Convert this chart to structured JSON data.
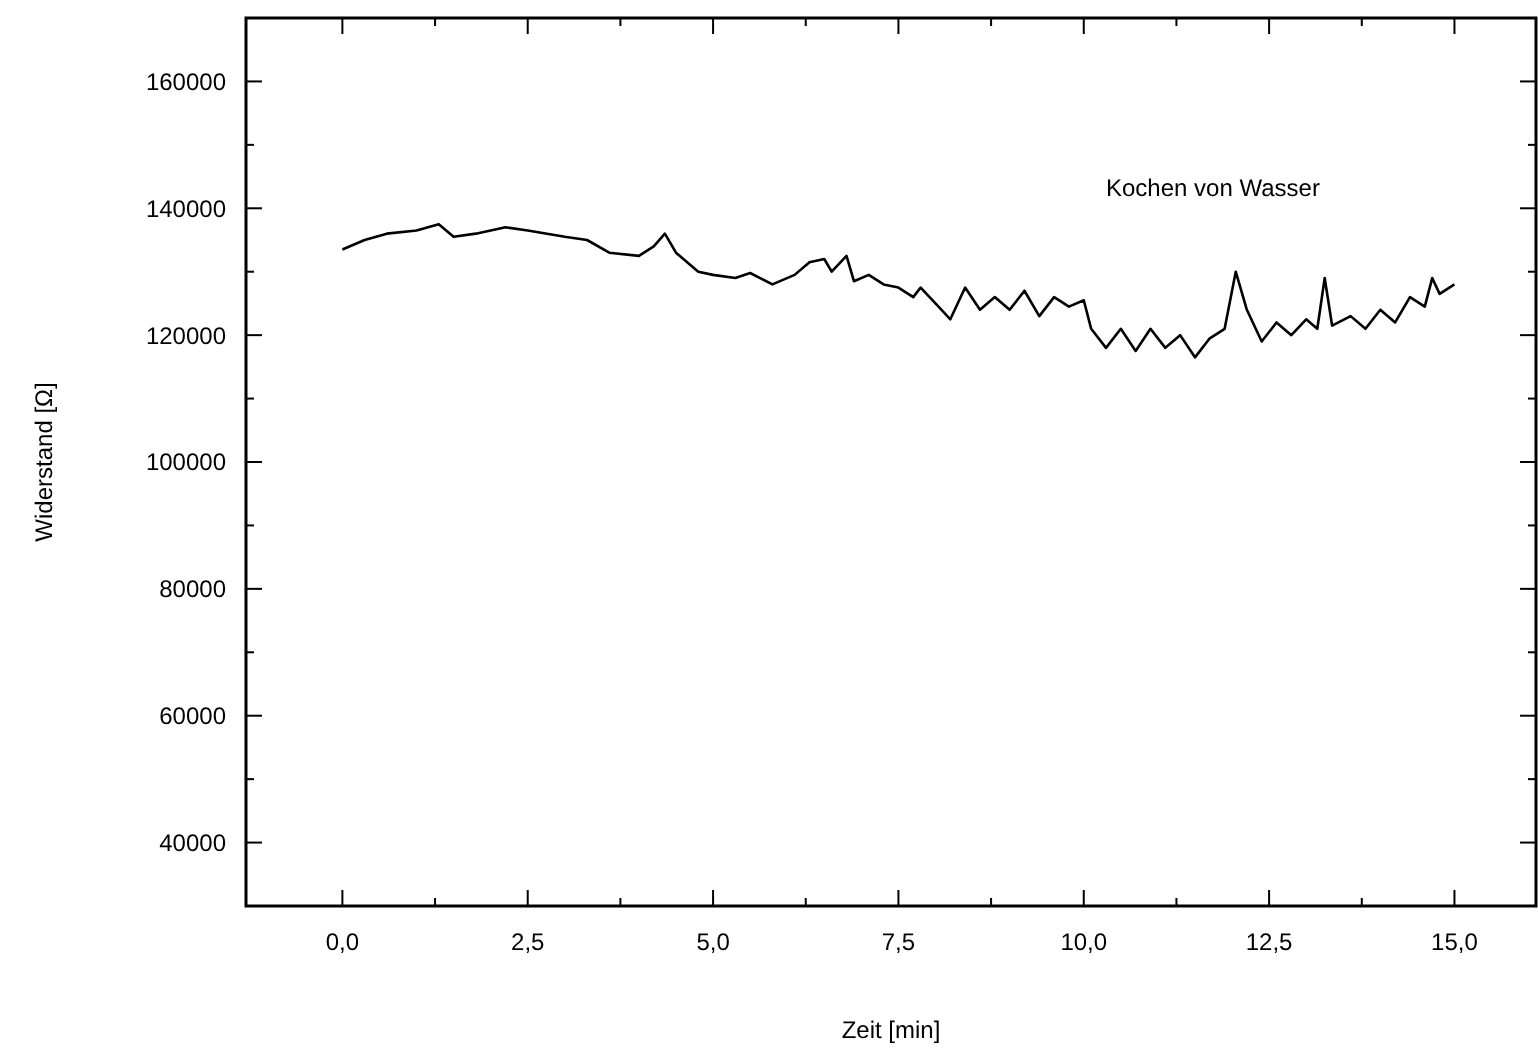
{
  "chart_data": {
    "type": "line",
    "xlabel": "Zeit [min]",
    "ylabel": "Widerstand [Ω]",
    "annotations": [
      "Kochen von Wasser"
    ],
    "xlim": [
      -1.3,
      16.1
    ],
    "ylim": [
      30000,
      170000
    ],
    "xticks": [
      {
        "value": 0,
        "label": "0,0"
      },
      {
        "value": 1.25,
        "label": null
      },
      {
        "value": 2.5,
        "label": "2,5"
      },
      {
        "value": 3.75,
        "label": null
      },
      {
        "value": 5,
        "label": "5,0"
      },
      {
        "value": 6.25,
        "label": null
      },
      {
        "value": 7.5,
        "label": "7,5"
      },
      {
        "value": 8.75,
        "label": null
      },
      {
        "value": 10,
        "label": "10,0"
      },
      {
        "value": 11.25,
        "label": null
      },
      {
        "value": 12.5,
        "label": "12,5"
      },
      {
        "value": 13.75,
        "label": null
      },
      {
        "value": 15,
        "label": "15,0"
      }
    ],
    "yticks": [
      40000,
      {
        "value": 50000,
        "label": null
      },
      60000,
      {
        "value": 70000,
        "label": null
      },
      80000,
      {
        "value": 90000,
        "label": null
      },
      100000,
      {
        "value": 110000,
        "label": null
      },
      120000,
      {
        "value": 130000,
        "label": null
      },
      140000,
      {
        "value": 150000,
        "label": null
      },
      160000
    ],
    "grid": false,
    "line_style": "solid",
    "marker": "none",
    "series": [
      {
        "color": "#000000",
        "x": [
          0,
          0.3,
          0.6,
          1.0,
          1.3,
          1.5,
          1.8,
          2.2,
          2.5,
          3.0,
          3.3,
          3.6,
          4.0,
          4.2,
          4.35,
          4.5,
          4.8,
          5.0,
          5.3,
          5.5,
          5.8,
          6.1,
          6.3,
          6.5,
          6.6,
          6.8,
          6.9,
          7.1,
          7.3,
          7.5,
          7.7,
          7.8,
          8.0,
          8.2,
          8.4,
          8.6,
          8.8,
          9.0,
          9.2,
          9.4,
          9.6,
          9.8,
          10.0,
          10.1,
          10.3,
          10.5,
          10.7,
          10.9,
          11.1,
          11.3,
          11.5,
          11.7,
          11.9,
          12.05,
          12.2,
          12.4,
          12.6,
          12.8,
          13.0,
          13.15,
          13.25,
          13.35,
          13.6,
          13.8,
          14.0,
          14.2,
          14.4,
          14.6,
          14.7,
          14.8,
          15.0
        ],
        "values": [
          133500,
          135000,
          136000,
          136500,
          137500,
          135500,
          136000,
          137000,
          136500,
          135500,
          135000,
          133000,
          132500,
          134000,
          136000,
          133000,
          130000,
          129500,
          129000,
          129800,
          128000,
          129500,
          131500,
          132000,
          130000,
          132500,
          128500,
          129500,
          128000,
          127500,
          126000,
          127500,
          125000,
          122500,
          127500,
          124000,
          126000,
          124000,
          127000,
          123000,
          126000,
          124500,
          125500,
          121000,
          118000,
          121000,
          117500,
          121000,
          118000,
          120000,
          116500,
          119500,
          121000,
          130000,
          124000,
          119000,
          122000,
          120000,
          122500,
          121000,
          129000,
          121500,
          123000,
          121000,
          124000,
          122000,
          126000,
          124500,
          129000,
          126500,
          128000
        ]
      }
    ]
  }
}
